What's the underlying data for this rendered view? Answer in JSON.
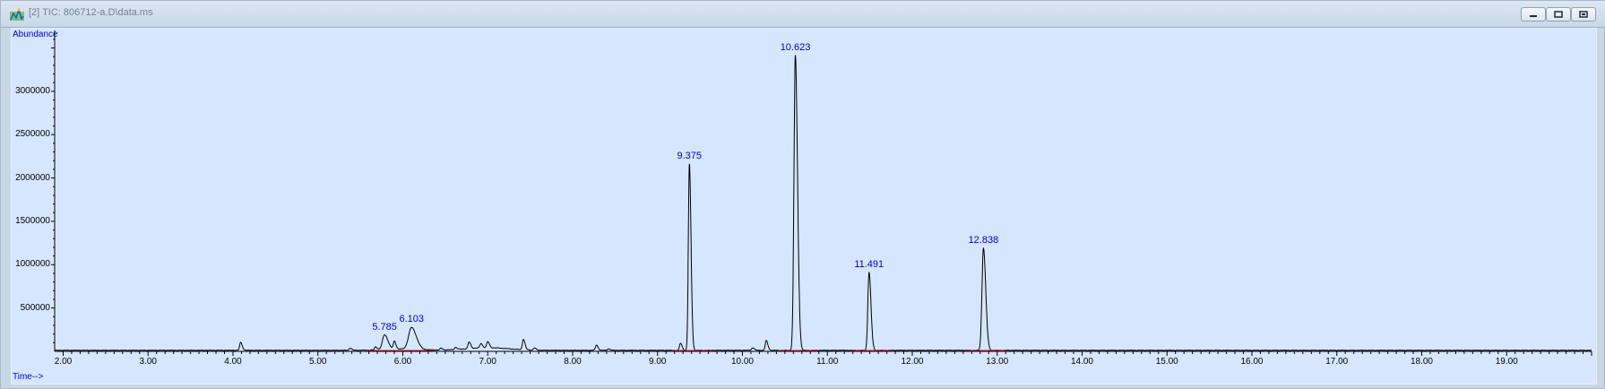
{
  "window": {
    "title": "[2] TIC: 806712-a.D\\data.ms",
    "buttons": [
      {
        "name": "minimize-button",
        "icon": "minimize-icon"
      },
      {
        "name": "restore-button",
        "icon": "restore-icon"
      },
      {
        "name": "close-button",
        "icon": "close-icon"
      }
    ]
  },
  "chart_data": {
    "type": "line",
    "ylabel": "Abundance",
    "xlabel": "Time-->",
    "xlim": [
      1.9,
      20.0
    ],
    "ylim": [
      0,
      3650000
    ],
    "x_ticks": [
      "2.00",
      "3.00",
      "4.00",
      "5.00",
      "6.00",
      "7.00",
      "8.00",
      "9.00",
      "10.00",
      "11.00",
      "12.00",
      "13.00",
      "14.00",
      "15.00",
      "16.00",
      "17.00",
      "18.00",
      "19.00"
    ],
    "y_ticks": [
      "500000",
      "1000000",
      "1500000",
      "2000000",
      "2500000",
      "3000000"
    ],
    "grid": false,
    "peaks": [
      {
        "rt": 5.785,
        "label": "5.785",
        "height": 170000,
        "width": 0.025
      },
      {
        "rt": 6.103,
        "label": "6.103",
        "height": 250000,
        "width": 0.035
      },
      {
        "rt": 9.375,
        "label": "9.375",
        "height": 2150000,
        "width": 0.012
      },
      {
        "rt": 10.623,
        "label": "10.623",
        "height": 3400000,
        "width": 0.016
      },
      {
        "rt": 11.491,
        "label": "11.491",
        "height": 900000,
        "width": 0.014
      },
      {
        "rt": 12.838,
        "label": "12.838",
        "height": 1180000,
        "width": 0.017
      }
    ],
    "minor_peaks": [
      {
        "rt": 4.09,
        "height": 90000
      },
      {
        "rt": 5.38,
        "height": 25000
      },
      {
        "rt": 5.68,
        "height": 35000
      },
      {
        "rt": 5.9,
        "height": 90000
      },
      {
        "rt": 6.45,
        "height": 20000
      },
      {
        "rt": 6.62,
        "height": 25000
      },
      {
        "rt": 6.78,
        "height": 75000
      },
      {
        "rt": 6.92,
        "height": 50000
      },
      {
        "rt": 7.0,
        "height": 70000
      },
      {
        "rt": 7.42,
        "height": 120000
      },
      {
        "rt": 7.55,
        "height": 25000
      },
      {
        "rt": 8.28,
        "height": 60000
      },
      {
        "rt": 8.42,
        "height": 18000
      },
      {
        "rt": 9.27,
        "height": 80000
      },
      {
        "rt": 10.12,
        "height": 30000
      },
      {
        "rt": 10.28,
        "height": 110000
      }
    ],
    "colors": {
      "trace": "#000000",
      "labels": "#0000cc",
      "baseline_marks": "#d02020",
      "background": "#d7e6ff"
    }
  }
}
